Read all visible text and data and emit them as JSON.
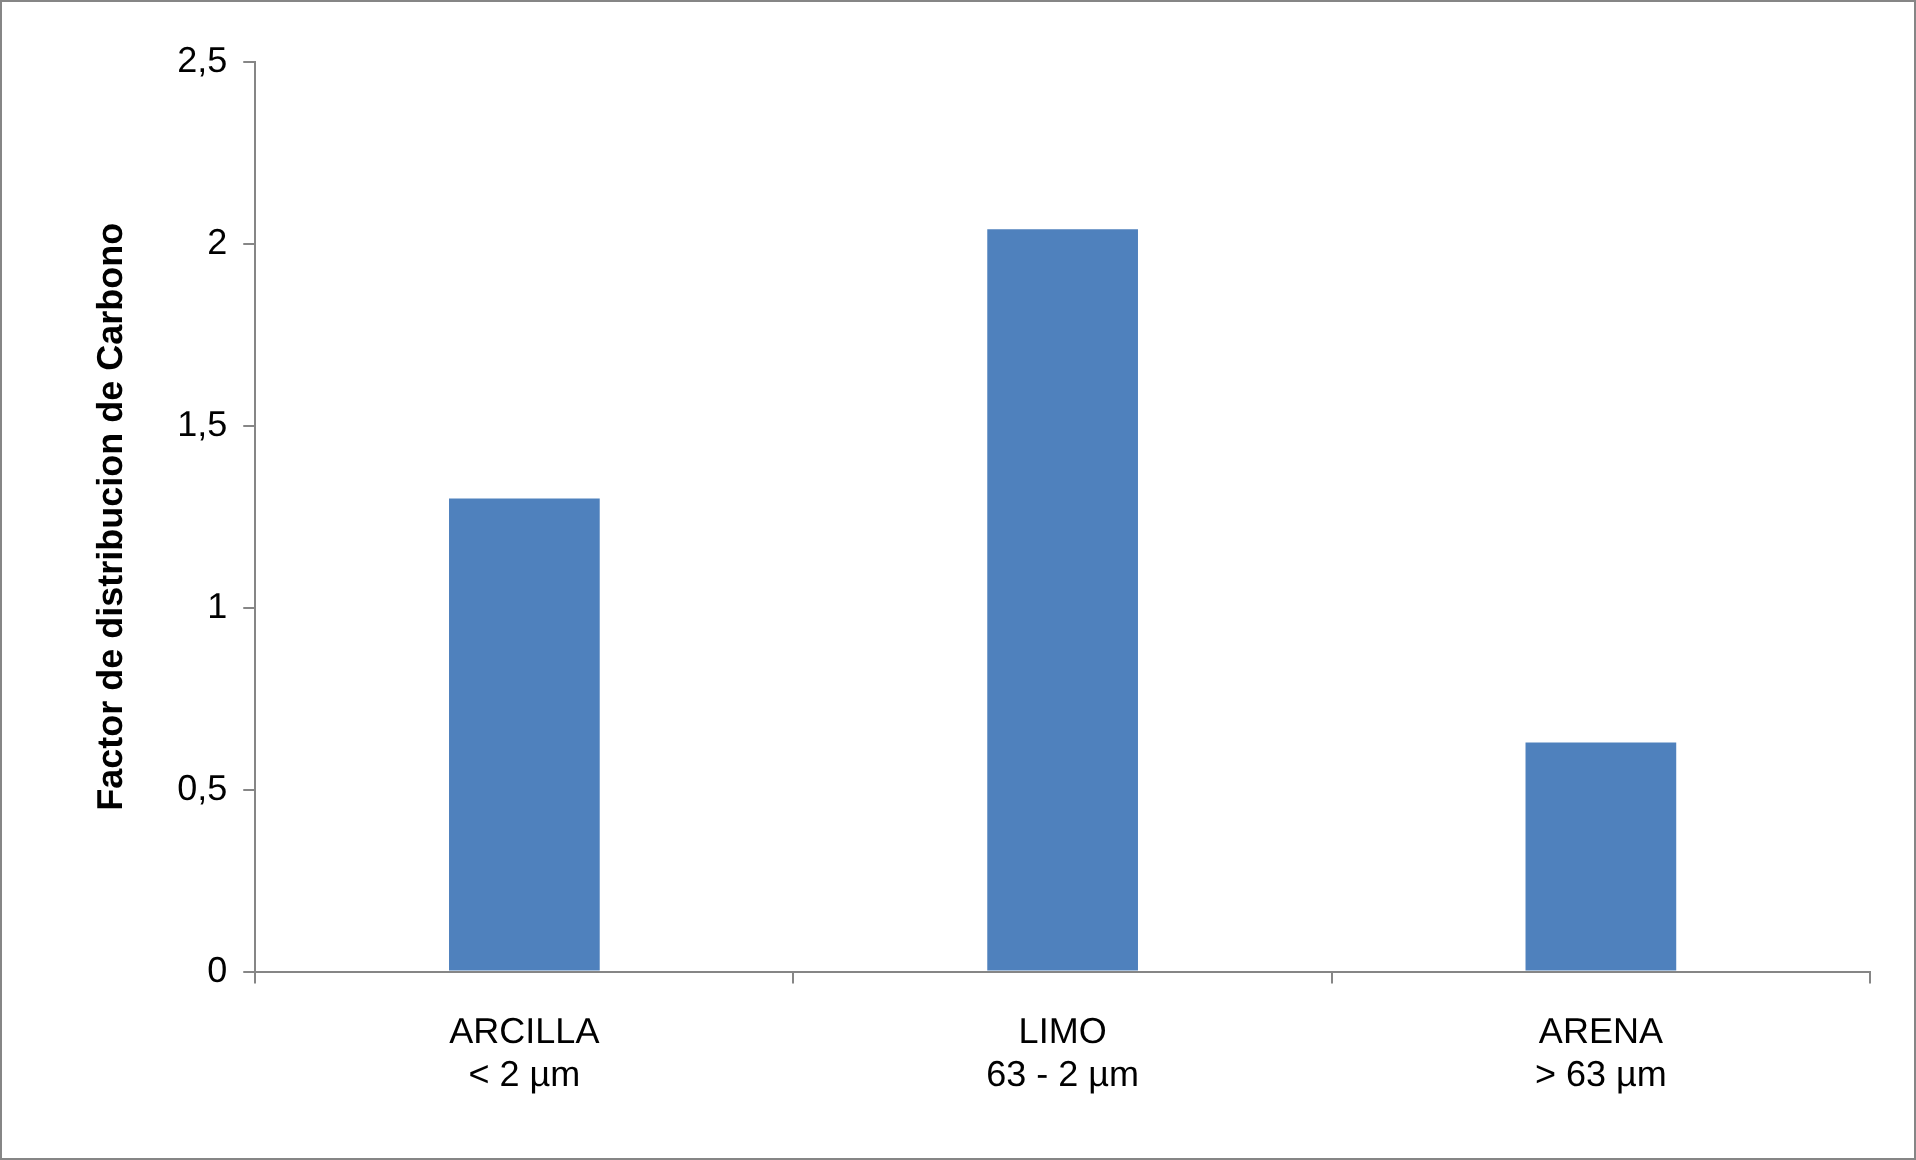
{
  "chart_data": {
    "type": "bar",
    "ylabel": "Factor de distribucion de Carbono",
    "categories": [
      "ARCILLA\n< 2 µm",
      "LIMO\n63 - 2 µm",
      "ARENA\n> 63 µm"
    ],
    "values": [
      1.3,
      2.04,
      0.63
    ],
    "color": "#4f81bd",
    "ylim": [
      0,
      2.5
    ],
    "yticks": [
      0,
      {
        "value": 0.5,
        "label": "0,5"
      },
      1,
      {
        "value": 1.5,
        "label": "1,5"
      },
      2,
      {
        "value": 2.5,
        "label": "2,5"
      }
    ],
    "grid": false,
    "legend": false
  }
}
